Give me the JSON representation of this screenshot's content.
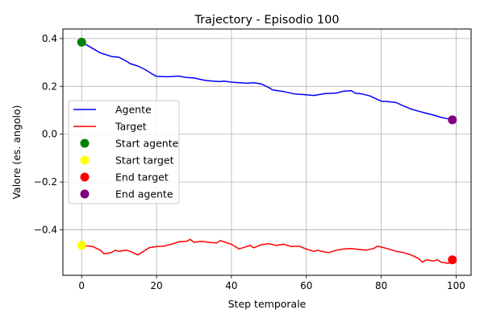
{
  "chart_data": {
    "type": "line",
    "title": "Trajectory - Episodio 100",
    "xlabel": "Step temporale",
    "ylabel": "Valore (es. angolo)",
    "xlim": [
      -5,
      104
    ],
    "ylim": [
      -0.59,
      0.44
    ],
    "xticks": [
      0,
      20,
      40,
      60,
      80,
      100
    ],
    "yticks": [
      -0.4,
      -0.2,
      0.0,
      0.2,
      0.4
    ],
    "xtick_labels": [
      "0",
      "20",
      "40",
      "60",
      "80",
      "100"
    ],
    "ytick_labels": [
      "−0.4",
      "−0.2",
      "0.0",
      "0.2",
      "0.4"
    ],
    "grid": true,
    "legend_position": "center-left",
    "series": [
      {
        "name": "Agente",
        "color": "#0000ff",
        "x": [
          0,
          5,
          8,
          10,
          12,
          13,
          15,
          17,
          19,
          20,
          23,
          26,
          28,
          30,
          33,
          35,
          37,
          38,
          40,
          42,
          44,
          46,
          48,
          50,
          51,
          54,
          57,
          60,
          62,
          65,
          68,
          70,
          72,
          73,
          75,
          77,
          79,
          80,
          82,
          84,
          86,
          88,
          90,
          92,
          94,
          96,
          98,
          99
        ],
        "y": [
          0.385,
          0.34,
          0.325,
          0.322,
          0.305,
          0.295,
          0.285,
          0.27,
          0.25,
          0.242,
          0.24,
          0.243,
          0.237,
          0.235,
          0.225,
          0.222,
          0.22,
          0.222,
          0.218,
          0.215,
          0.213,
          0.215,
          0.21,
          0.195,
          0.185,
          0.178,
          0.168,
          0.165,
          0.162,
          0.17,
          0.172,
          0.18,
          0.182,
          0.172,
          0.168,
          0.16,
          0.145,
          0.138,
          0.136,
          0.132,
          0.118,
          0.105,
          0.096,
          0.088,
          0.08,
          0.07,
          0.064,
          0.06
        ]
      },
      {
        "name": "Target",
        "color": "#ff0000",
        "x": [
          0,
          3,
          5,
          6,
          8,
          9,
          10,
          12,
          13,
          15,
          16,
          18,
          20,
          22,
          24,
          26,
          28,
          29,
          30,
          32,
          34,
          36,
          37,
          38,
          40,
          41,
          42,
          43,
          44,
          45,
          46,
          47,
          48,
          50,
          52,
          54,
          55,
          56,
          58,
          60,
          62,
          63,
          64,
          66,
          67,
          68,
          70,
          72,
          74,
          76,
          78,
          79,
          80,
          82,
          84,
          86,
          88,
          90,
          91,
          92,
          94,
          95,
          96,
          98,
          99
        ],
        "y": [
          -0.465,
          -0.47,
          -0.485,
          -0.5,
          -0.495,
          -0.485,
          -0.49,
          -0.485,
          -0.49,
          -0.505,
          -0.495,
          -0.475,
          -0.47,
          -0.468,
          -0.46,
          -0.45,
          -0.448,
          -0.44,
          -0.452,
          -0.448,
          -0.452,
          -0.455,
          -0.445,
          -0.45,
          -0.46,
          -0.47,
          -0.48,
          -0.475,
          -0.47,
          -0.465,
          -0.475,
          -0.468,
          -0.462,
          -0.458,
          -0.465,
          -0.46,
          -0.465,
          -0.47,
          -0.468,
          -0.48,
          -0.49,
          -0.485,
          -0.49,
          -0.495,
          -0.49,
          -0.485,
          -0.48,
          -0.478,
          -0.482,
          -0.485,
          -0.478,
          -0.468,
          -0.472,
          -0.48,
          -0.49,
          -0.495,
          -0.505,
          -0.52,
          -0.535,
          -0.525,
          -0.53,
          -0.525,
          -0.535,
          -0.54,
          -0.525
        ]
      }
    ],
    "markers": [
      {
        "name": "Start agente",
        "x": 0,
        "y": 0.385,
        "color": "#008000"
      },
      {
        "name": "Start target",
        "x": 0,
        "y": -0.465,
        "color": "#ffff00"
      },
      {
        "name": "End target",
        "x": 99,
        "y": -0.525,
        "color": "#ff0000"
      },
      {
        "name": "End agente",
        "x": 99,
        "y": 0.06,
        "color": "#800080"
      }
    ]
  }
}
